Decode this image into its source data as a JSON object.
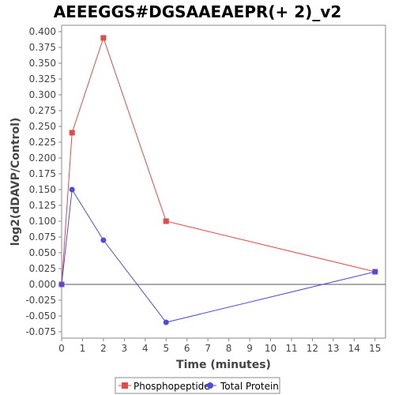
{
  "chart_data": {
    "type": "line",
    "title": "AEEEGGS#DGSAAEAEPR(+ 2)_v2",
    "xlabel": "Time (minutes)",
    "ylabel": "log2(dDAVP/Control)",
    "xlim": [
      0,
      15.5
    ],
    "ylim": [
      -0.085,
      0.41
    ],
    "x_ticks": [
      "0",
      "1",
      "2",
      "3",
      "4",
      "5",
      "6",
      "7",
      "8",
      "9",
      "10",
      "11",
      "12",
      "13",
      "14",
      "15"
    ],
    "y_ticks": [
      "-0.075",
      "-0.050",
      "-0.025",
      "0.000",
      "0.025",
      "0.050",
      "0.075",
      "0.100",
      "0.125",
      "0.150",
      "0.175",
      "0.200",
      "0.225",
      "0.250",
      "0.275",
      "0.300",
      "0.325",
      "0.350",
      "0.375",
      "0.400"
    ],
    "zero_line": true,
    "grid": false,
    "legend_position": "bottom",
    "series": [
      {
        "name": "Phosphopeptide",
        "marker": "square",
        "color": "#e8484b",
        "x": [
          0,
          0.5,
          2,
          5,
          15
        ],
        "y": [
          0.0,
          0.24,
          0.39,
          0.1,
          0.02
        ]
      },
      {
        "name": "Total Protein",
        "marker": "circle",
        "color": "#4b4be8",
        "x": [
          0,
          0.5,
          2,
          5,
          15
        ],
        "y": [
          0.0,
          0.15,
          0.07,
          -0.06,
          0.02
        ]
      }
    ]
  }
}
